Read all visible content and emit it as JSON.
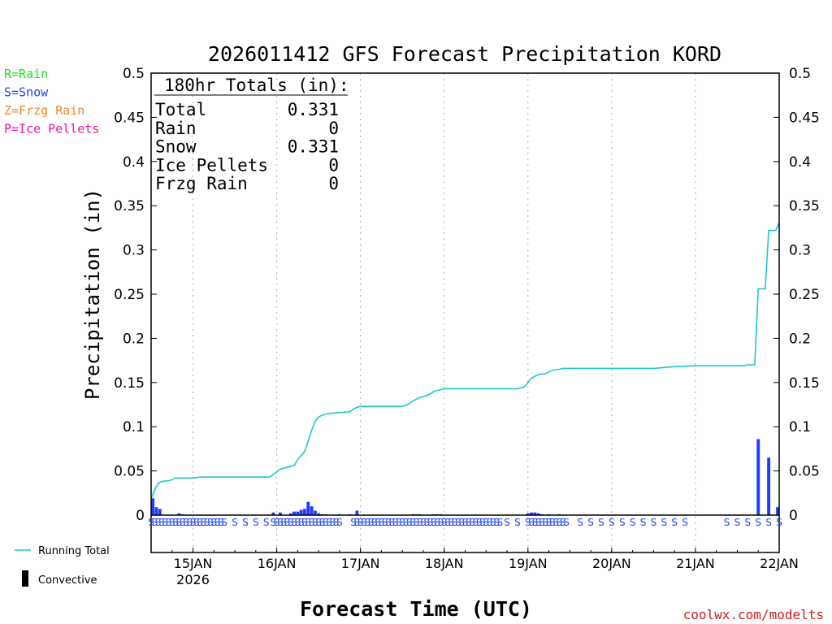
{
  "chart_data": {
    "type": "bar",
    "title": "2026011412 GFS Forecast Precipitation KORD",
    "ylabel": "Precipitation (in)",
    "xlabel": "Forecast Time (UTC)",
    "ylim": [
      0,
      0.5
    ],
    "y_ticks": [
      0,
      0.05,
      0.1,
      0.15,
      0.2,
      0.25,
      0.3,
      0.35,
      0.4,
      0.45,
      0.5
    ],
    "y_tick_labels": [
      "0",
      "0.05",
      "0.1",
      "0.15",
      "0.2",
      "0.25",
      "0.3",
      "0.35",
      "0.4",
      "0.45",
      "0.5"
    ],
    "x_range_hours": [
      0,
      180
    ],
    "x_ticks": [
      {
        "hour": 12,
        "label": "15JAN",
        "sublabel": "2026"
      },
      {
        "hour": 36,
        "label": "16JAN"
      },
      {
        "hour": 60,
        "label": "17JAN"
      },
      {
        "hour": 84,
        "label": "18JAN"
      },
      {
        "hour": 108,
        "label": "19JAN"
      },
      {
        "hour": 132,
        "label": "20JAN"
      },
      {
        "hour": 156,
        "label": "21JAN"
      },
      {
        "hour": 180,
        "label": "22JAN"
      }
    ],
    "series": [
      {
        "name": "Running Total",
        "color": "#1ec8c8",
        "points": [
          [
            0,
            0.019
          ],
          [
            1,
            0.028
          ],
          [
            2,
            0.036
          ],
          [
            3,
            0.038
          ],
          [
            5,
            0.039
          ],
          [
            6,
            0.04
          ],
          [
            7,
            0.042
          ],
          [
            9,
            0.042
          ],
          [
            11,
            0.042
          ],
          [
            12,
            0.042
          ],
          [
            14,
            0.043
          ],
          [
            16,
            0.043
          ],
          [
            24,
            0.043
          ],
          [
            30,
            0.043
          ],
          [
            34,
            0.043
          ],
          [
            35,
            0.046
          ],
          [
            36,
            0.049
          ],
          [
            37,
            0.052
          ],
          [
            39,
            0.054
          ],
          [
            41,
            0.056
          ],
          [
            42,
            0.063
          ],
          [
            44,
            0.072
          ],
          [
            45,
            0.084
          ],
          [
            46,
            0.096
          ],
          [
            47,
            0.106
          ],
          [
            48,
            0.111
          ],
          [
            49,
            0.113
          ],
          [
            51,
            0.115
          ],
          [
            54,
            0.116
          ],
          [
            57,
            0.117
          ],
          [
            58,
            0.12
          ],
          [
            59,
            0.122
          ],
          [
            60,
            0.123
          ],
          [
            63,
            0.123
          ],
          [
            72,
            0.123
          ],
          [
            74,
            0.126
          ],
          [
            75,
            0.129
          ],
          [
            77,
            0.133
          ],
          [
            78,
            0.134
          ],
          [
            80,
            0.137
          ],
          [
            81,
            0.14
          ],
          [
            83,
            0.142
          ],
          [
            84,
            0.143
          ],
          [
            90,
            0.143
          ],
          [
            96,
            0.143
          ],
          [
            100,
            0.143
          ],
          [
            105,
            0.143
          ],
          [
            107,
            0.145
          ],
          [
            108,
            0.15
          ],
          [
            109,
            0.155
          ],
          [
            110,
            0.157
          ],
          [
            111,
            0.159
          ],
          [
            113,
            0.16
          ],
          [
            114,
            0.162
          ],
          [
            115,
            0.164
          ],
          [
            117,
            0.165
          ],
          [
            118,
            0.166
          ],
          [
            120,
            0.166
          ],
          [
            132,
            0.166
          ],
          [
            144,
            0.166
          ],
          [
            147,
            0.167
          ],
          [
            150,
            0.168
          ],
          [
            156,
            0.169
          ],
          [
            168,
            0.169
          ],
          [
            170,
            0.169
          ],
          [
            171,
            0.17
          ],
          [
            173,
            0.17
          ],
          [
            174,
            0.256
          ],
          [
            176,
            0.256
          ],
          [
            177,
            0.322
          ],
          [
            179,
            0.322
          ],
          [
            180,
            0.331
          ]
        ]
      },
      {
        "name": "Snow",
        "color": "#1f3cff",
        "bars": [
          [
            0.5,
            0.019
          ],
          [
            1.5,
            0.009
          ],
          [
            2.5,
            0.007
          ],
          [
            8,
            0.002
          ],
          [
            9,
            0.001
          ],
          [
            35,
            0.003
          ],
          [
            37,
            0.003
          ],
          [
            40,
            0.002
          ],
          [
            41,
            0.004
          ],
          [
            42,
            0.004
          ],
          [
            43,
            0.006
          ],
          [
            44,
            0.007
          ],
          [
            45,
            0.015
          ],
          [
            46,
            0.01
          ],
          [
            47,
            0.005
          ],
          [
            48,
            0.002
          ],
          [
            49,
            0.001
          ],
          [
            50,
            0.001
          ],
          [
            54,
            0.001
          ],
          [
            57,
            0.001
          ],
          [
            59,
            0.005
          ],
          [
            75,
            0.001
          ],
          [
            76,
            0.001
          ],
          [
            77,
            0.001
          ],
          [
            81,
            0.001
          ],
          [
            82,
            0.001
          ],
          [
            83,
            0.001
          ],
          [
            108,
            0.002
          ],
          [
            109,
            0.003
          ],
          [
            110,
            0.003
          ],
          [
            111,
            0.002
          ],
          [
            112,
            0.001
          ],
          [
            114,
            0.001
          ],
          [
            117,
            0.001
          ],
          [
            174,
            0.086
          ],
          [
            177,
            0.065
          ],
          [
            180,
            0.009
          ]
        ]
      }
    ],
    "ptype_letters": {
      "letter": "S",
      "dense_ranges": [
        [
          0,
          21
        ],
        [
          35,
          54
        ],
        [
          58,
          100
        ],
        [
          108,
          119
        ]
      ],
      "sparse_hours": [
        24,
        27,
        30,
        33,
        102,
        105,
        123,
        126,
        129,
        132,
        135,
        138,
        141,
        144,
        147,
        150,
        153,
        165,
        168,
        171,
        174,
        177,
        180
      ]
    },
    "annotations": {
      "totals_header": "180hr Totals (in):",
      "totals": [
        {
          "label": "Total",
          "value": "0.331"
        },
        {
          "label": "Rain",
          "value": "0"
        },
        {
          "label": "Snow",
          "value": "0.331"
        },
        {
          "label": "Ice Pellets",
          "value": "0"
        },
        {
          "label": "Frzg Rain",
          "value": "0"
        }
      ]
    }
  },
  "ptype_legend": [
    {
      "text": "R=Rain",
      "color": "#22dd22"
    },
    {
      "text": "S=Snow",
      "color": "#2244ee"
    },
    {
      "text": "Z=Frzg Rain",
      "color": "#ee8833"
    },
    {
      "text": "P=Ice Pellets",
      "color": "#ee1199"
    }
  ],
  "bottom_legend": {
    "running_total": "Running Total",
    "convective": "Convective"
  },
  "credit": "coolwx.com/modelts"
}
